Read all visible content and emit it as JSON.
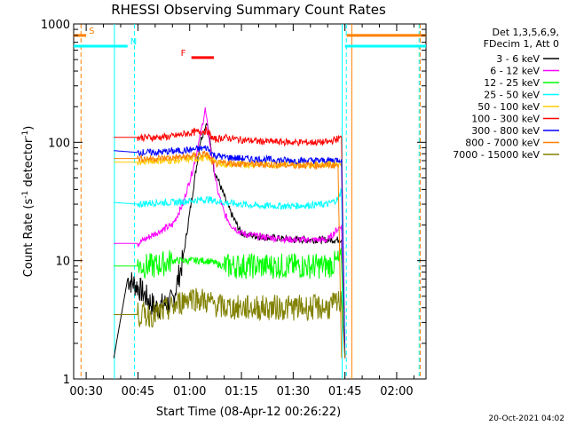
{
  "chart_data": {
    "type": "line",
    "title": "RHESSI Observing Summary Count Rates",
    "xlabel": "Start Time (08-Apr-12 00:26:22)",
    "ylabel_main": "Count Rate (s",
    "ylabel_sup1": "-1",
    "ylabel_mid": " detector",
    "ylabel_sup2": "-1",
    "ylabel_end": ")",
    "y_scale": "log",
    "ylim": [
      1,
      1000
    ],
    "xlim_minutes": [
      26.37,
      128.5
    ],
    "x_ticks": [
      {
        "label": "00:30",
        "minutes": 30
      },
      {
        "label": "00:45",
        "minutes": 45
      },
      {
        "label": "01:00",
        "minutes": 60
      },
      {
        "label": "01:15",
        "minutes": 75
      },
      {
        "label": "01:30",
        "minutes": 90
      },
      {
        "label": "01:45",
        "minutes": 105
      },
      {
        "label": "02:00",
        "minutes": 120
      }
    ],
    "y_ticks": [
      {
        "label": "1",
        "value": 1
      },
      {
        "label": "10",
        "value": 10
      },
      {
        "label": "100",
        "value": 100
      },
      {
        "label": "1000",
        "value": 1000
      }
    ],
    "legend_header": [
      "Det 1,3,5,6,9,",
      "FDecim 1, Att 0"
    ],
    "legend_position": "top-right",
    "series": [
      {
        "name": "3 - 6 keV",
        "color": "#000000",
        "points": [
          [
            38,
            1.5
          ],
          [
            42,
            7
          ],
          [
            45,
            6
          ],
          [
            50,
            4
          ],
          [
            55,
            4.5
          ],
          [
            58,
            10
          ],
          [
            61,
            40
          ],
          [
            63,
            100
          ],
          [
            65,
            150
          ],
          [
            67,
            60
          ],
          [
            70,
            35
          ],
          [
            72,
            25
          ],
          [
            75,
            17
          ],
          [
            80,
            16
          ],
          [
            90,
            15
          ],
          [
            100,
            15
          ],
          [
            104,
            15
          ],
          [
            105,
            1.5
          ]
        ]
      },
      {
        "name": "6 - 12 keV",
        "color": "#ff00ff",
        "points": [
          [
            38,
            14
          ],
          [
            45,
            14
          ],
          [
            50,
            17
          ],
          [
            55,
            20
          ],
          [
            58,
            30
          ],
          [
            61,
            60
          ],
          [
            63,
            110
          ],
          [
            64.5,
            190
          ],
          [
            66,
            90
          ],
          [
            68,
            40
          ],
          [
            70,
            25
          ],
          [
            72,
            20
          ],
          [
            75,
            17
          ],
          [
            80,
            16
          ],
          [
            90,
            15
          ],
          [
            100,
            15
          ],
          [
            104,
            20
          ],
          [
            105,
            1.5
          ]
        ]
      },
      {
        "name": "12 - 25 keV",
        "color": "#00ff00",
        "points": [
          [
            38,
            9
          ],
          [
            45,
            9
          ],
          [
            50,
            9
          ],
          [
            55,
            10
          ],
          [
            60,
            10
          ],
          [
            65,
            10
          ],
          [
            70,
            9
          ],
          [
            80,
            9
          ],
          [
            90,
            9
          ],
          [
            100,
            9
          ],
          [
            104,
            10
          ],
          [
            105,
            1.5
          ]
        ]
      },
      {
        "name": "25 - 50 keV",
        "color": "#00ffff",
        "points": [
          [
            38,
            31
          ],
          [
            45,
            30
          ],
          [
            50,
            31
          ],
          [
            55,
            31
          ],
          [
            60,
            32
          ],
          [
            65,
            33
          ],
          [
            70,
            31
          ],
          [
            75,
            30
          ],
          [
            80,
            29
          ],
          [
            90,
            29
          ],
          [
            100,
            30
          ],
          [
            103,
            33
          ],
          [
            104,
            40
          ],
          [
            105,
            1.5
          ]
        ]
      },
      {
        "name": "50 - 100 keV",
        "color": "#ffcc00",
        "points": [
          [
            38,
            68
          ],
          [
            45,
            68
          ],
          [
            50,
            70
          ],
          [
            55,
            70
          ],
          [
            60,
            72
          ],
          [
            65,
            74
          ],
          [
            68,
            68
          ],
          [
            70,
            65
          ],
          [
            80,
            65
          ],
          [
            90,
            65
          ],
          [
            100,
            65
          ],
          [
            104,
            67
          ],
          [
            105,
            1.5
          ]
        ]
      },
      {
        "name": "100 - 300 keV",
        "color": "#ff0000",
        "points": [
          [
            38,
            110
          ],
          [
            45,
            110
          ],
          [
            50,
            110
          ],
          [
            55,
            112
          ],
          [
            60,
            120
          ],
          [
            65,
            125
          ],
          [
            67,
            105
          ],
          [
            70,
            110
          ],
          [
            75,
            105
          ],
          [
            80,
            102
          ],
          [
            90,
            100
          ],
          [
            100,
            100
          ],
          [
            104,
            110
          ],
          [
            105,
            1.5
          ]
        ]
      },
      {
        "name": "300 - 800 keV",
        "color": "#0000ff",
        "points": [
          [
            38,
            85
          ],
          [
            45,
            82
          ],
          [
            50,
            82
          ],
          [
            55,
            84
          ],
          [
            60,
            86
          ],
          [
            65,
            90
          ],
          [
            67,
            78
          ],
          [
            70,
            75
          ],
          [
            75,
            73
          ],
          [
            80,
            72
          ],
          [
            90,
            70
          ],
          [
            100,
            70
          ],
          [
            104,
            72
          ],
          [
            105,
            1.5
          ]
        ]
      },
      {
        "name": "800 - 7000 keV",
        "color": "#ff8000",
        "points": [
          [
            38,
            73
          ],
          [
            45,
            73
          ],
          [
            50,
            73
          ],
          [
            55,
            74
          ],
          [
            60,
            76
          ],
          [
            65,
            80
          ],
          [
            67,
            65
          ],
          [
            70,
            67
          ],
          [
            80,
            65
          ],
          [
            90,
            64
          ],
          [
            100,
            64
          ],
          [
            103,
            64
          ],
          [
            104,
            1.5
          ]
        ]
      },
      {
        "name": "7000 - 15000 keV",
        "color": "#808000",
        "points": [
          [
            38,
            3.5
          ],
          [
            45,
            3.5
          ],
          [
            50,
            3.5
          ],
          [
            55,
            4
          ],
          [
            60,
            5
          ],
          [
            65,
            4.5
          ],
          [
            70,
            4
          ],
          [
            80,
            4
          ],
          [
            90,
            4
          ],
          [
            100,
            4
          ],
          [
            104,
            4.5
          ],
          [
            105,
            1.5
          ]
        ]
      }
    ],
    "flag_bars": [
      {
        "label": "S",
        "color": "#ff8000",
        "segments": [
          [
            26.37,
            30
          ],
          [
            105.5,
            128.5
          ]
        ],
        "level": 800
      },
      {
        "label": "N",
        "color": "#00ffff",
        "segments": [
          [
            26.37,
            42
          ],
          [
            105,
            128.5
          ]
        ],
        "level": 650
      },
      {
        "label": "F",
        "color": "#ff0000",
        "segments": [
          [
            60.5,
            67
          ]
        ],
        "level": 520
      }
    ],
    "vlines": [
      {
        "minutes": 28.5,
        "color": "#ff8000",
        "style": "dashed"
      },
      {
        "minutes": 38.2,
        "color": "#00ffff",
        "style": "solid"
      },
      {
        "minutes": 44.0,
        "color": "#00ffff",
        "style": "dashed"
      },
      {
        "minutes": 104.2,
        "color": "#00ffff",
        "style": "solid"
      },
      {
        "minutes": 105.4,
        "color": "#00ffff",
        "style": "dashed"
      },
      {
        "minutes": 107.0,
        "color": "#ff8000",
        "style": "solid"
      },
      {
        "minutes": 126.5,
        "color": "#00ffff",
        "style": "dashed"
      },
      {
        "minutes": 126.8,
        "color": "#ff8000",
        "style": "dashed"
      }
    ]
  },
  "footer": {
    "timestamp": "20-Oct-2021 04:02"
  }
}
